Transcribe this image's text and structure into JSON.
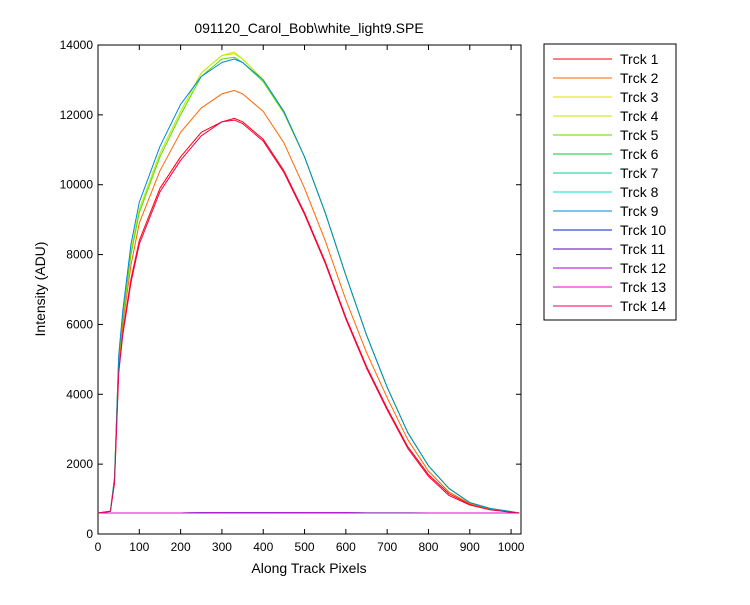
{
  "chart_data": {
    "type": "line",
    "title": "091120_Carol_Bob\\white_light9.SPE",
    "xlabel": "Along Track Pixels",
    "ylabel": "Intensity (ADU)",
    "xlim": [
      0,
      1024
    ],
    "ylim": [
      0,
      14000
    ],
    "xticks": [
      0,
      100,
      200,
      300,
      400,
      500,
      600,
      700,
      800,
      900,
      1000
    ],
    "yticks": [
      0,
      2000,
      4000,
      6000,
      8000,
      10000,
      12000,
      14000
    ],
    "grid": false,
    "legend_position": "outside-right",
    "x": [
      0,
      30,
      40,
      50,
      60,
      80,
      100,
      150,
      200,
      250,
      300,
      330,
      350,
      400,
      450,
      500,
      550,
      600,
      650,
      700,
      750,
      800,
      850,
      900,
      950,
      1000,
      1020
    ],
    "series": [
      {
        "name": "Trck 1",
        "color": "#ff0000",
        "values": [
          600,
          650,
          1500,
          4700,
          5800,
          7300,
          8400,
          9900,
          10800,
          11500,
          11800,
          11900,
          11800,
          11300,
          10400,
          9200,
          7800,
          6200,
          4800,
          3600,
          2500,
          1700,
          1150,
          850,
          700,
          630,
          600
        ]
      },
      {
        "name": "Trck 2",
        "color": "#ff6600",
        "values": [
          600,
          650,
          1550,
          4900,
          6000,
          7700,
          8900,
          10400,
          11500,
          12200,
          12600,
          12700,
          12600,
          12100,
          11200,
          9900,
          8400,
          6700,
          5200,
          3900,
          2700,
          1800,
          1200,
          870,
          710,
          630,
          600
        ]
      },
      {
        "name": "Trck 3",
        "color": "#e0e000",
        "values": [
          600,
          650,
          1600,
          5100,
          6300,
          8100,
          9300,
          10900,
          12100,
          13200,
          13700,
          13800,
          13600,
          13000,
          12100,
          10800,
          9200,
          7400,
          5700,
          4200,
          2900,
          1950,
          1300,
          900,
          730,
          640,
          600
        ]
      },
      {
        "name": "Trck 4",
        "color": "#bbee00",
        "values": [
          600,
          650,
          1600,
          5100,
          6300,
          8100,
          9300,
          10900,
          12100,
          13200,
          13700,
          13750,
          13600,
          13000,
          12100,
          10800,
          9200,
          7400,
          5700,
          4200,
          2900,
          1950,
          1300,
          900,
          730,
          640,
          600
        ]
      },
      {
        "name": "Trck 5",
        "color": "#55dd00",
        "values": [
          600,
          650,
          1600,
          5000,
          6200,
          8000,
          9200,
          10800,
          12000,
          13100,
          13600,
          13650,
          13500,
          12950,
          12050,
          10800,
          9200,
          7400,
          5700,
          4200,
          2900,
          1950,
          1300,
          900,
          730,
          640,
          600
        ]
      },
      {
        "name": "Trck 6",
        "color": "#00cc33",
        "values": [
          600,
          600,
          600,
          600,
          600,
          600,
          600,
          600,
          600,
          610,
          610,
          610,
          610,
          610,
          610,
          610,
          610,
          610,
          605,
          605,
          605,
          600,
          600,
          600,
          600,
          600,
          600
        ]
      },
      {
        "name": "Trck 7",
        "color": "#00cc99",
        "values": [
          600,
          600,
          600,
          600,
          600,
          600,
          600,
          600,
          600,
          610,
          610,
          610,
          610,
          610,
          610,
          610,
          610,
          610,
          605,
          605,
          605,
          600,
          600,
          600,
          600,
          600,
          600
        ]
      },
      {
        "name": "Trck 8",
        "color": "#00dddd",
        "values": [
          600,
          600,
          600,
          600,
          600,
          600,
          600,
          600,
          600,
          610,
          615,
          615,
          615,
          615,
          615,
          610,
          610,
          610,
          605,
          605,
          605,
          600,
          600,
          600,
          600,
          600,
          600
        ]
      },
      {
        "name": "Trck 9",
        "color": "#0088dd",
        "values": [
          600,
          650,
          1600,
          5100,
          6400,
          8300,
          9500,
          11100,
          12300,
          13100,
          13500,
          13600,
          13500,
          13000,
          12100,
          10800,
          9200,
          7400,
          5700,
          4200,
          2900,
          1950,
          1300,
          900,
          730,
          640,
          600
        ]
      },
      {
        "name": "Trck 10",
        "color": "#0022cc",
        "values": [
          600,
          600,
          600,
          600,
          600,
          600,
          600,
          600,
          600,
          605,
          605,
          605,
          605,
          605,
          605,
          605,
          605,
          605,
          600,
          600,
          600,
          600,
          600,
          600,
          600,
          600,
          600
        ]
      },
      {
        "name": "Trck 11",
        "color": "#5500bb",
        "values": [
          600,
          600,
          600,
          600,
          600,
          600,
          600,
          600,
          600,
          605,
          605,
          605,
          605,
          605,
          605,
          605,
          605,
          605,
          600,
          600,
          600,
          600,
          600,
          600,
          600,
          600,
          600
        ]
      },
      {
        "name": "Trck 12",
        "color": "#aa00cc",
        "values": [
          600,
          600,
          600,
          600,
          600,
          600,
          600,
          600,
          600,
          605,
          605,
          605,
          605,
          605,
          605,
          605,
          605,
          605,
          600,
          600,
          600,
          600,
          600,
          600,
          600,
          600,
          600
        ]
      },
      {
        "name": "Trck 13",
        "color": "#ee00cc",
        "values": [
          600,
          600,
          600,
          600,
          600,
          600,
          600,
          600,
          600,
          605,
          605,
          605,
          605,
          605,
          605,
          605,
          605,
          605,
          600,
          600,
          600,
          600,
          600,
          600,
          600,
          600,
          600
        ]
      },
      {
        "name": "Trck 14",
        "color": "#ee0055",
        "values": [
          600,
          650,
          1450,
          4600,
          5700,
          7200,
          8300,
          9800,
          10700,
          11400,
          11800,
          11850,
          11750,
          11250,
          10350,
          9150,
          7750,
          6150,
          4750,
          3550,
          2450,
          1650,
          1100,
          830,
          690,
          620,
          600
        ]
      }
    ]
  }
}
